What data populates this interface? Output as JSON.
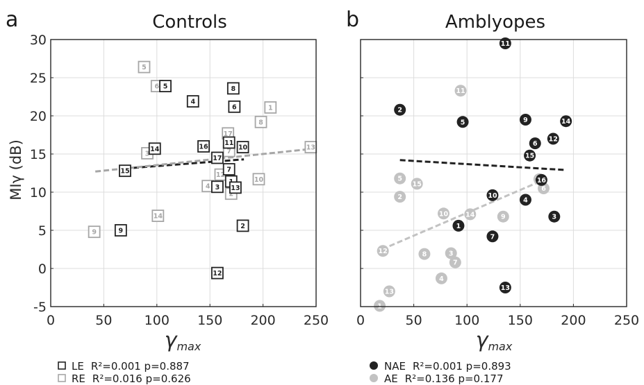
{
  "colors": {
    "left": "#222222",
    "right": "#a6a6a6",
    "grid": "#dcdcdc",
    "axis": "#262626"
  },
  "chart_data": [
    {
      "type": "scatter",
      "panel_letter": "a",
      "title": "Controls",
      "xlabel_symbol": "γ",
      "xlabel_sub": "max",
      "ylabel": "MIγ (dB)",
      "xlim": [
        0,
        250
      ],
      "ylim": [
        -5,
        30
      ],
      "xticks": [
        "0",
        "50",
        "100",
        "150",
        "200",
        "250"
      ],
      "yticks": [
        "-5",
        "0",
        "5",
        "10",
        "15",
        "20",
        "25",
        "30"
      ],
      "marker": "square",
      "grid": true,
      "series": [
        {
          "name": "LE",
          "stats": "R²=0.001 p=0.887",
          "color": "#222222",
          "points": [
            {
              "x": 108,
              "y": 23.9,
              "label": "5"
            },
            {
              "x": 134,
              "y": 21.9,
              "label": "4"
            },
            {
              "x": 172,
              "y": 23.6,
              "label": "8"
            },
            {
              "x": 173,
              "y": 21.2,
              "label": "6"
            },
            {
              "x": 98,
              "y": 15.7,
              "label": "14"
            },
            {
              "x": 144,
              "y": 16.0,
              "label": "16"
            },
            {
              "x": 168,
              "y": 16.5,
              "label": "11"
            },
            {
              "x": 181,
              "y": 15.9,
              "label": "10"
            },
            {
              "x": 157,
              "y": 14.5,
              "label": "17"
            },
            {
              "x": 70,
              "y": 12.8,
              "label": "15"
            },
            {
              "x": 168,
              "y": 13.0,
              "label": "7"
            },
            {
              "x": 170,
              "y": 11.4,
              "label": "1"
            },
            {
              "x": 157,
              "y": 10.7,
              "label": "3"
            },
            {
              "x": 174,
              "y": 10.6,
              "label": "13"
            },
            {
              "x": 66,
              "y": 5.0,
              "label": "9"
            },
            {
              "x": 181,
              "y": 5.6,
              "label": "2"
            },
            {
              "x": 157,
              "y": -0.6,
              "label": "12"
            }
          ],
          "fit": {
            "x": [
              70,
              182
            ],
            "y": [
              13.1,
              14.3
            ]
          }
        },
        {
          "name": "RE",
          "stats": "R²=0.016 p=0.626",
          "color": "#a6a6a6",
          "points": [
            {
              "x": 88,
              "y": 26.4,
              "label": "5"
            },
            {
              "x": 100,
              "y": 23.9,
              "label": "6"
            },
            {
              "x": 207,
              "y": 21.1,
              "label": "1"
            },
            {
              "x": 198,
              "y": 19.2,
              "label": "8"
            },
            {
              "x": 167,
              "y": 17.7,
              "label": "17"
            },
            {
              "x": 168,
              "y": 15.4,
              "label": "7"
            },
            {
              "x": 91,
              "y": 15.1,
              "label": "3"
            },
            {
              "x": 245,
              "y": 15.9,
              "label": "13"
            },
            {
              "x": 160,
              "y": 12.3,
              "label": "12"
            },
            {
              "x": 196,
              "y": 11.7,
              "label": "10"
            },
            {
              "x": 148,
              "y": 10.8,
              "label": "4"
            },
            {
              "x": 170,
              "y": 9.8,
              "label": "2"
            },
            {
              "x": 101,
              "y": 6.9,
              "label": "14"
            },
            {
              "x": 41,
              "y": 4.8,
              "label": "9"
            }
          ],
          "fit": {
            "x": [
              42,
              248
            ],
            "y": [
              12.7,
              15.7
            ]
          }
        }
      ]
    },
    {
      "type": "scatter",
      "panel_letter": "b",
      "title": "Amblyopes",
      "xlabel_symbol": "γ",
      "xlabel_sub": "max",
      "xlim": [
        0,
        250
      ],
      "ylim": [
        -5,
        30
      ],
      "xticks": [
        "0",
        "50",
        "100",
        "150",
        "200",
        "250"
      ],
      "marker": "circle",
      "grid": true,
      "series": [
        {
          "name": "NAE",
          "stats": "R²=0.001 p=0.893",
          "color": "#222222",
          "points": [
            {
              "x": 136,
              "y": 29.5,
              "label": "11"
            },
            {
              "x": 37,
              "y": 20.8,
              "label": "2"
            },
            {
              "x": 96,
              "y": 19.2,
              "label": "5"
            },
            {
              "x": 155,
              "y": 19.5,
              "label": "9"
            },
            {
              "x": 193,
              "y": 19.3,
              "label": "14"
            },
            {
              "x": 181,
              "y": 17.0,
              "label": "12"
            },
            {
              "x": 164,
              "y": 16.4,
              "label": "6"
            },
            {
              "x": 159,
              "y": 14.8,
              "label": "15"
            },
            {
              "x": 170,
              "y": 11.6,
              "label": "16"
            },
            {
              "x": 124,
              "y": 9.6,
              "label": "10"
            },
            {
              "x": 155,
              "y": 9.0,
              "label": "4"
            },
            {
              "x": 182,
              "y": 6.8,
              "label": "3"
            },
            {
              "x": 92,
              "y": 5.6,
              "label": "1"
            },
            {
              "x": 124,
              "y": 4.2,
              "label": "7"
            },
            {
              "x": 136,
              "y": -2.5,
              "label": "13"
            }
          ],
          "fit": {
            "x": [
              37,
              193
            ],
            "y": [
              14.2,
              12.9
            ]
          }
        },
        {
          "name": "AE",
          "stats": "R²=0.136 p=0.177",
          "color": "#c2c2c2",
          "points": [
            {
              "x": 94,
              "y": 23.3,
              "label": "11"
            },
            {
              "x": 37,
              "y": 11.8,
              "label": "5"
            },
            {
              "x": 53,
              "y": 11.1,
              "label": "15"
            },
            {
              "x": 37,
              "y": 9.4,
              "label": "2"
            },
            {
              "x": 172,
              "y": 10.5,
              "label": "6"
            },
            {
              "x": 168,
              "y": 11.7,
              "label": "16"
            },
            {
              "x": 78,
              "y": 7.2,
              "label": "10"
            },
            {
              "x": 103,
              "y": 7.1,
              "label": "14"
            },
            {
              "x": 134,
              "y": 6.8,
              "label": "9"
            },
            {
              "x": 21,
              "y": 2.3,
              "label": "12"
            },
            {
              "x": 60,
              "y": 1.9,
              "label": "8"
            },
            {
              "x": 85,
              "y": 2.0,
              "label": "3"
            },
            {
              "x": 89,
              "y": 0.8,
              "label": "7"
            },
            {
              "x": 76,
              "y": -1.3,
              "label": "4"
            },
            {
              "x": 27,
              "y": -3.0,
              "label": "13"
            },
            {
              "x": 18,
              "y": -4.9,
              "label": "1"
            }
          ],
          "fit": {
            "x": [
              20,
              172
            ],
            "y": [
              2.5,
              11.6
            ]
          }
        }
      ]
    }
  ]
}
